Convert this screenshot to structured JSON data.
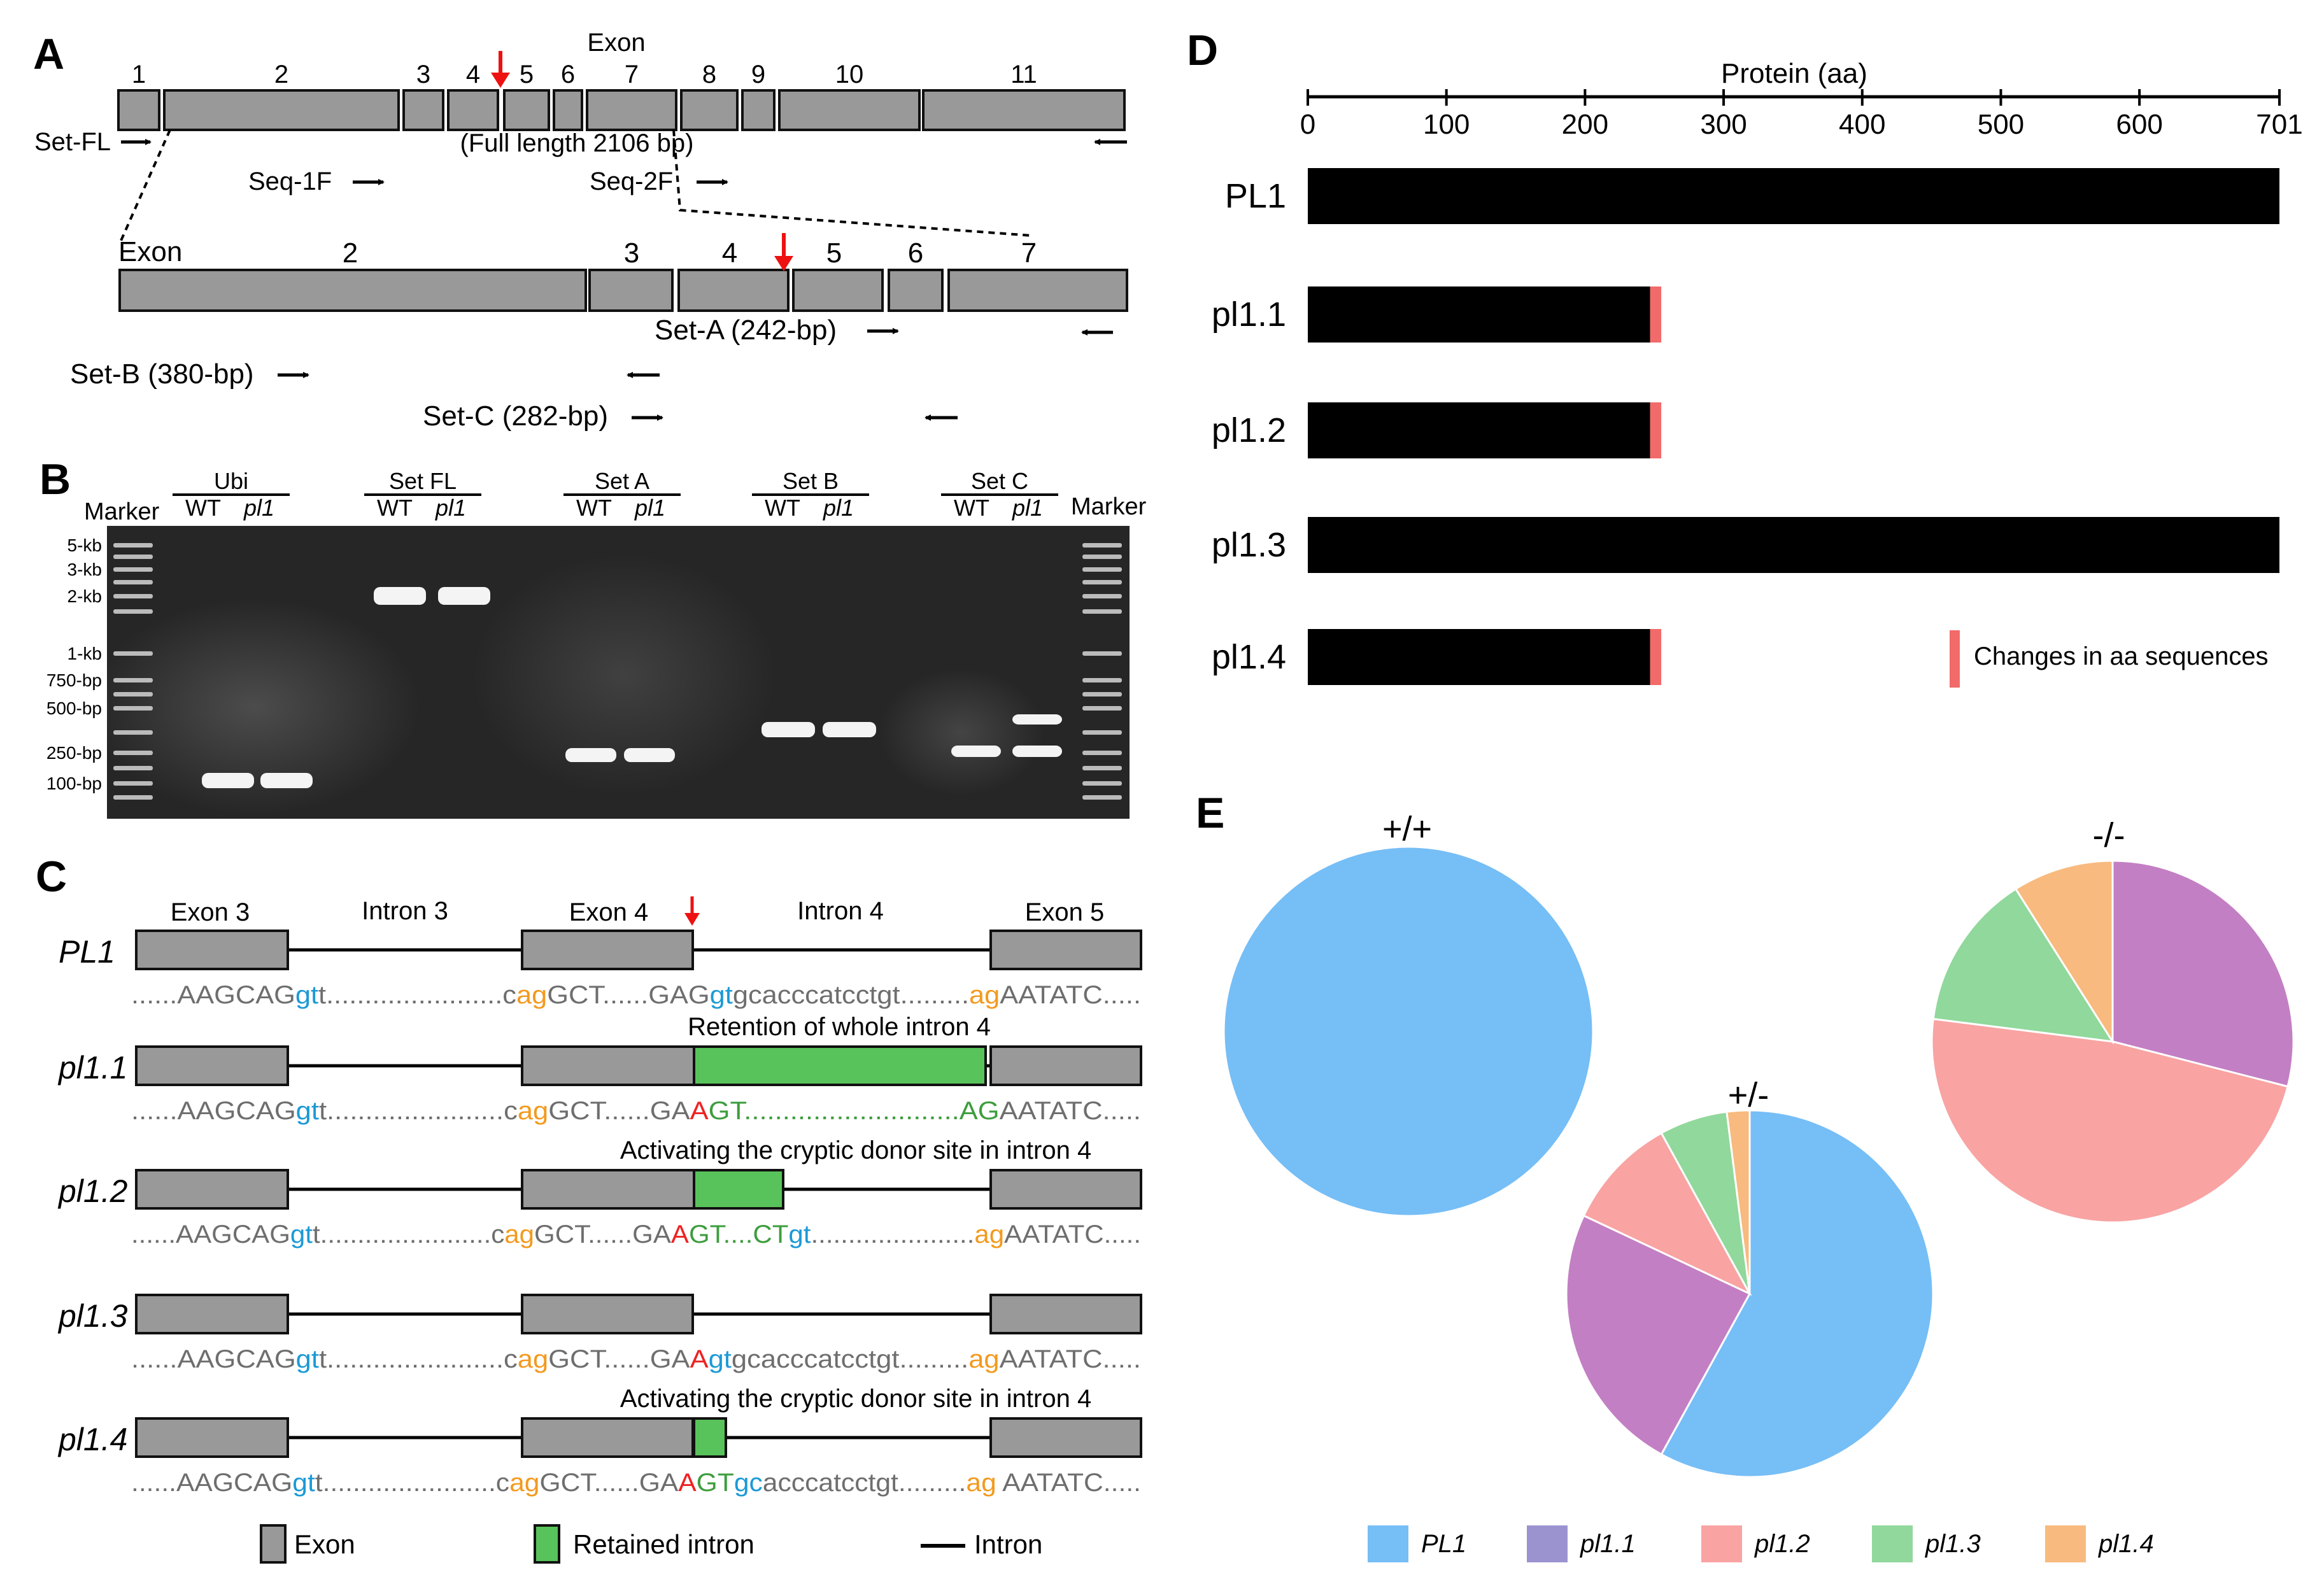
{
  "colors": {
    "exon": "#999999",
    "exon_stroke": "#111111",
    "intron_green": "#58C35A",
    "arrow_red": "#EE1111",
    "bar_black": "#000000",
    "aa_change": "#F26A6A",
    "seq_gray": "#6E6E6E",
    "seq_orange": "#F39A1E",
    "seq_blue": "#1B9AD6",
    "seq_red": "#EE2222",
    "seq_green": "#3E9D3E",
    "gel_bg": "#262626",
    "pie_pl1": "#76BEF6",
    "pie_pl1_1": "#C37FC4",
    "pie_pl1_2": "#F9A3A3",
    "pie_pl1_3": "#90D89B",
    "pie_pl1_4": "#F8BA7E",
    "legend_pl1_1": "#9B93D0"
  },
  "panelA": {
    "label": "A",
    "exon_title": "Exon",
    "exon_numbers": [
      "1",
      "2",
      "3",
      "4",
      "5",
      "6",
      "7",
      "8",
      "9",
      "10",
      "11"
    ],
    "zoom_exon_title": "Exon",
    "zoom_exon_numbers": [
      "2",
      "3",
      "4",
      "5",
      "6",
      "7"
    ],
    "full_length": "(Full length 2106 bp)",
    "primers": {
      "set_fl": "Set-FL",
      "seq_1f": "Seq-1F",
      "seq_2f": "Seq-2F",
      "set_a": "Set-A (242-bp)",
      "set_b": "Set-B (380-bp)",
      "set_c": "Set-C (282-bp)"
    },
    "arrow_icons": {
      "forward": "right-arrow-icon",
      "reverse": "left-arrow-icon",
      "site": "red-down-arrow-icon"
    }
  },
  "panelB": {
    "label": "B",
    "marker_left": "Marker",
    "marker_right": "Marker",
    "groups": [
      {
        "title": "Ubi",
        "lanes": [
          "WT",
          "pl1"
        ]
      },
      {
        "title": "Set FL",
        "lanes": [
          "WT",
          "pl1"
        ]
      },
      {
        "title": "Set A",
        "lanes": [
          "WT",
          "pl1"
        ]
      },
      {
        "title": "Set B",
        "lanes": [
          "WT",
          "pl1"
        ]
      },
      {
        "title": "Set C",
        "lanes": [
          "WT",
          "pl1"
        ]
      }
    ],
    "ladder": [
      "5-kb",
      "3-kb",
      "2-kb",
      "1-kb",
      "750-bp",
      "500-bp",
      "250-bp",
      "100-bp"
    ]
  },
  "panelC": {
    "label": "C",
    "header": {
      "exon3": "Exon 3",
      "intron3": "Intron 3",
      "exon4": "Exon 4",
      "intron4": "Intron 4",
      "exon5": "Exon 5"
    },
    "rows": [
      {
        "name": "PL1",
        "note": "",
        "seq": [
          {
            "t": "......",
            "c": "seq_gray"
          },
          {
            "t": "AAGCAG",
            "c": "seq_gray"
          },
          {
            "t": "gt",
            "c": "seq_blue"
          },
          {
            "t": "t.......................",
            "c": "seq_gray"
          },
          {
            "t": "c",
            "c": "seq_gray"
          },
          {
            "t": "ag",
            "c": "seq_orange"
          },
          {
            "t": "GCT......GAG",
            "c": "seq_gray"
          },
          {
            "t": "gt",
            "c": "seq_blue"
          },
          {
            "t": "gcacccatcctgt.........",
            "c": "seq_gray"
          },
          {
            "t": "ag",
            "c": "seq_orange"
          },
          {
            "t": "AATATC.....",
            "c": "seq_gray"
          }
        ]
      },
      {
        "name": "pl1.1",
        "note": "Retention of  whole intron 4",
        "seq": [
          {
            "t": "......",
            "c": "seq_gray"
          },
          {
            "t": "AAGCAG",
            "c": "seq_gray"
          },
          {
            "t": "gt",
            "c": "seq_blue"
          },
          {
            "t": "t.......................",
            "c": "seq_gray"
          },
          {
            "t": "c",
            "c": "seq_gray"
          },
          {
            "t": "ag",
            "c": "seq_orange"
          },
          {
            "t": "GCT......GA",
            "c": "seq_gray"
          },
          {
            "t": "A",
            "c": "seq_red"
          },
          {
            "t": "GT............................",
            "c": "seq_green"
          },
          {
            "t": "AG",
            "c": "seq_green"
          },
          {
            "t": "AATATC.....",
            "c": "seq_gray"
          }
        ]
      },
      {
        "name": "pl1.2",
        "note": "Activating the cryptic donor site in intron 4",
        "seq": [
          {
            "t": "......",
            "c": "seq_gray"
          },
          {
            "t": "AAGCAG",
            "c": "seq_gray"
          },
          {
            "t": "gt",
            "c": "seq_blue"
          },
          {
            "t": "t.......................",
            "c": "seq_gray"
          },
          {
            "t": "c",
            "c": "seq_gray"
          },
          {
            "t": "ag",
            "c": "seq_orange"
          },
          {
            "t": "GCT......GA",
            "c": "seq_gray"
          },
          {
            "t": "A",
            "c": "seq_red"
          },
          {
            "t": "GT....CT",
            "c": "seq_green"
          },
          {
            "t": "gt",
            "c": "seq_blue"
          },
          {
            "t": "......................",
            "c": "seq_gray"
          },
          {
            "t": "ag",
            "c": "seq_orange"
          },
          {
            "t": "AATATC.....",
            "c": "seq_gray"
          }
        ]
      },
      {
        "name": "pl1.3",
        "note": "",
        "seq": [
          {
            "t": "......",
            "c": "seq_gray"
          },
          {
            "t": "AAGCAG",
            "c": "seq_gray"
          },
          {
            "t": "gt",
            "c": "seq_blue"
          },
          {
            "t": "t.......................",
            "c": "seq_gray"
          },
          {
            "t": "c",
            "c": "seq_gray"
          },
          {
            "t": "ag",
            "c": "seq_orange"
          },
          {
            "t": "GCT......GA",
            "c": "seq_gray"
          },
          {
            "t": "A",
            "c": "seq_red"
          },
          {
            "t": "gt",
            "c": "seq_blue"
          },
          {
            "t": "gcacccatcctgt.........",
            "c": "seq_gray"
          },
          {
            "t": "ag",
            "c": "seq_orange"
          },
          {
            "t": "AATATC.....",
            "c": "seq_gray"
          }
        ]
      },
      {
        "name": "pl1.4",
        "note": "Activating the cryptic donor site in intron 4",
        "seq": [
          {
            "t": "......",
            "c": "seq_gray"
          },
          {
            "t": "AAGCAG",
            "c": "seq_gray"
          },
          {
            "t": "gt",
            "c": "seq_blue"
          },
          {
            "t": "t.......................",
            "c": "seq_gray"
          },
          {
            "t": "c",
            "c": "seq_gray"
          },
          {
            "t": "ag",
            "c": "seq_orange"
          },
          {
            "t": "GCT......GA",
            "c": "seq_gray"
          },
          {
            "t": "A",
            "c": "seq_red"
          },
          {
            "t": "GT",
            "c": "seq_green"
          },
          {
            "t": "gc",
            "c": "seq_blue"
          },
          {
            "t": "acccatcctgt.........",
            "c": "seq_gray"
          },
          {
            "t": "ag",
            "c": "seq_orange"
          },
          {
            "t": " AATATC.....",
            "c": "seq_gray"
          }
        ]
      }
    ],
    "legend": {
      "exon": "Exon",
      "retained": "Retained intron",
      "intron": "Intron"
    }
  },
  "panelD": {
    "label": "D",
    "axis_title": "Protein (aa)",
    "ticks": [
      "0",
      "100",
      "200",
      "300",
      "400",
      "500",
      "600",
      "701"
    ],
    "legend": "Changes in aa sequences"
  },
  "chart_data": [
    {
      "type": "bar",
      "orientation": "horizontal",
      "title": "Protein (aa)",
      "categories": [
        "PL1",
        "pl1.1",
        "pl1.2",
        "pl1.3",
        "pl1.4"
      ],
      "series": [
        {
          "name": "Protein length (aa)",
          "values": [
            701,
            247,
            247,
            701,
            247
          ]
        },
        {
          "name": "Changes in aa sequences",
          "values": [
            0,
            8,
            8,
            0,
            8
          ]
        }
      ],
      "xlim": [
        0,
        701
      ],
      "xticks": [
        0,
        100,
        200,
        300,
        400,
        500,
        600,
        701
      ]
    },
    {
      "type": "pie",
      "title": "+/+",
      "labels": [
        "PL1"
      ],
      "values": [
        100
      ]
    },
    {
      "type": "pie",
      "title": "+/-",
      "labels": [
        "PL1",
        "pl1.1",
        "pl1.2",
        "pl1.3",
        "pl1.4"
      ],
      "values": [
        58,
        24,
        10,
        6,
        2
      ]
    },
    {
      "type": "pie",
      "title": "-/-",
      "labels": [
        "pl1.1",
        "pl1.2",
        "pl1.3",
        "pl1.4"
      ],
      "values": [
        29,
        48,
        14,
        9
      ]
    }
  ],
  "panelE": {
    "label": "E",
    "pie_titles": [
      "+/+",
      "+/-",
      "-/-"
    ],
    "legend": [
      {
        "label": "PL1",
        "color": "pie_pl1"
      },
      {
        "label": "pl1.1",
        "color": "legend_pl1_1"
      },
      {
        "label": "pl1.2",
        "color": "pie_pl1_2"
      },
      {
        "label": "pl1.3",
        "color": "pie_pl1_3"
      },
      {
        "label": "pl1.4",
        "color": "pie_pl1_4"
      }
    ]
  }
}
